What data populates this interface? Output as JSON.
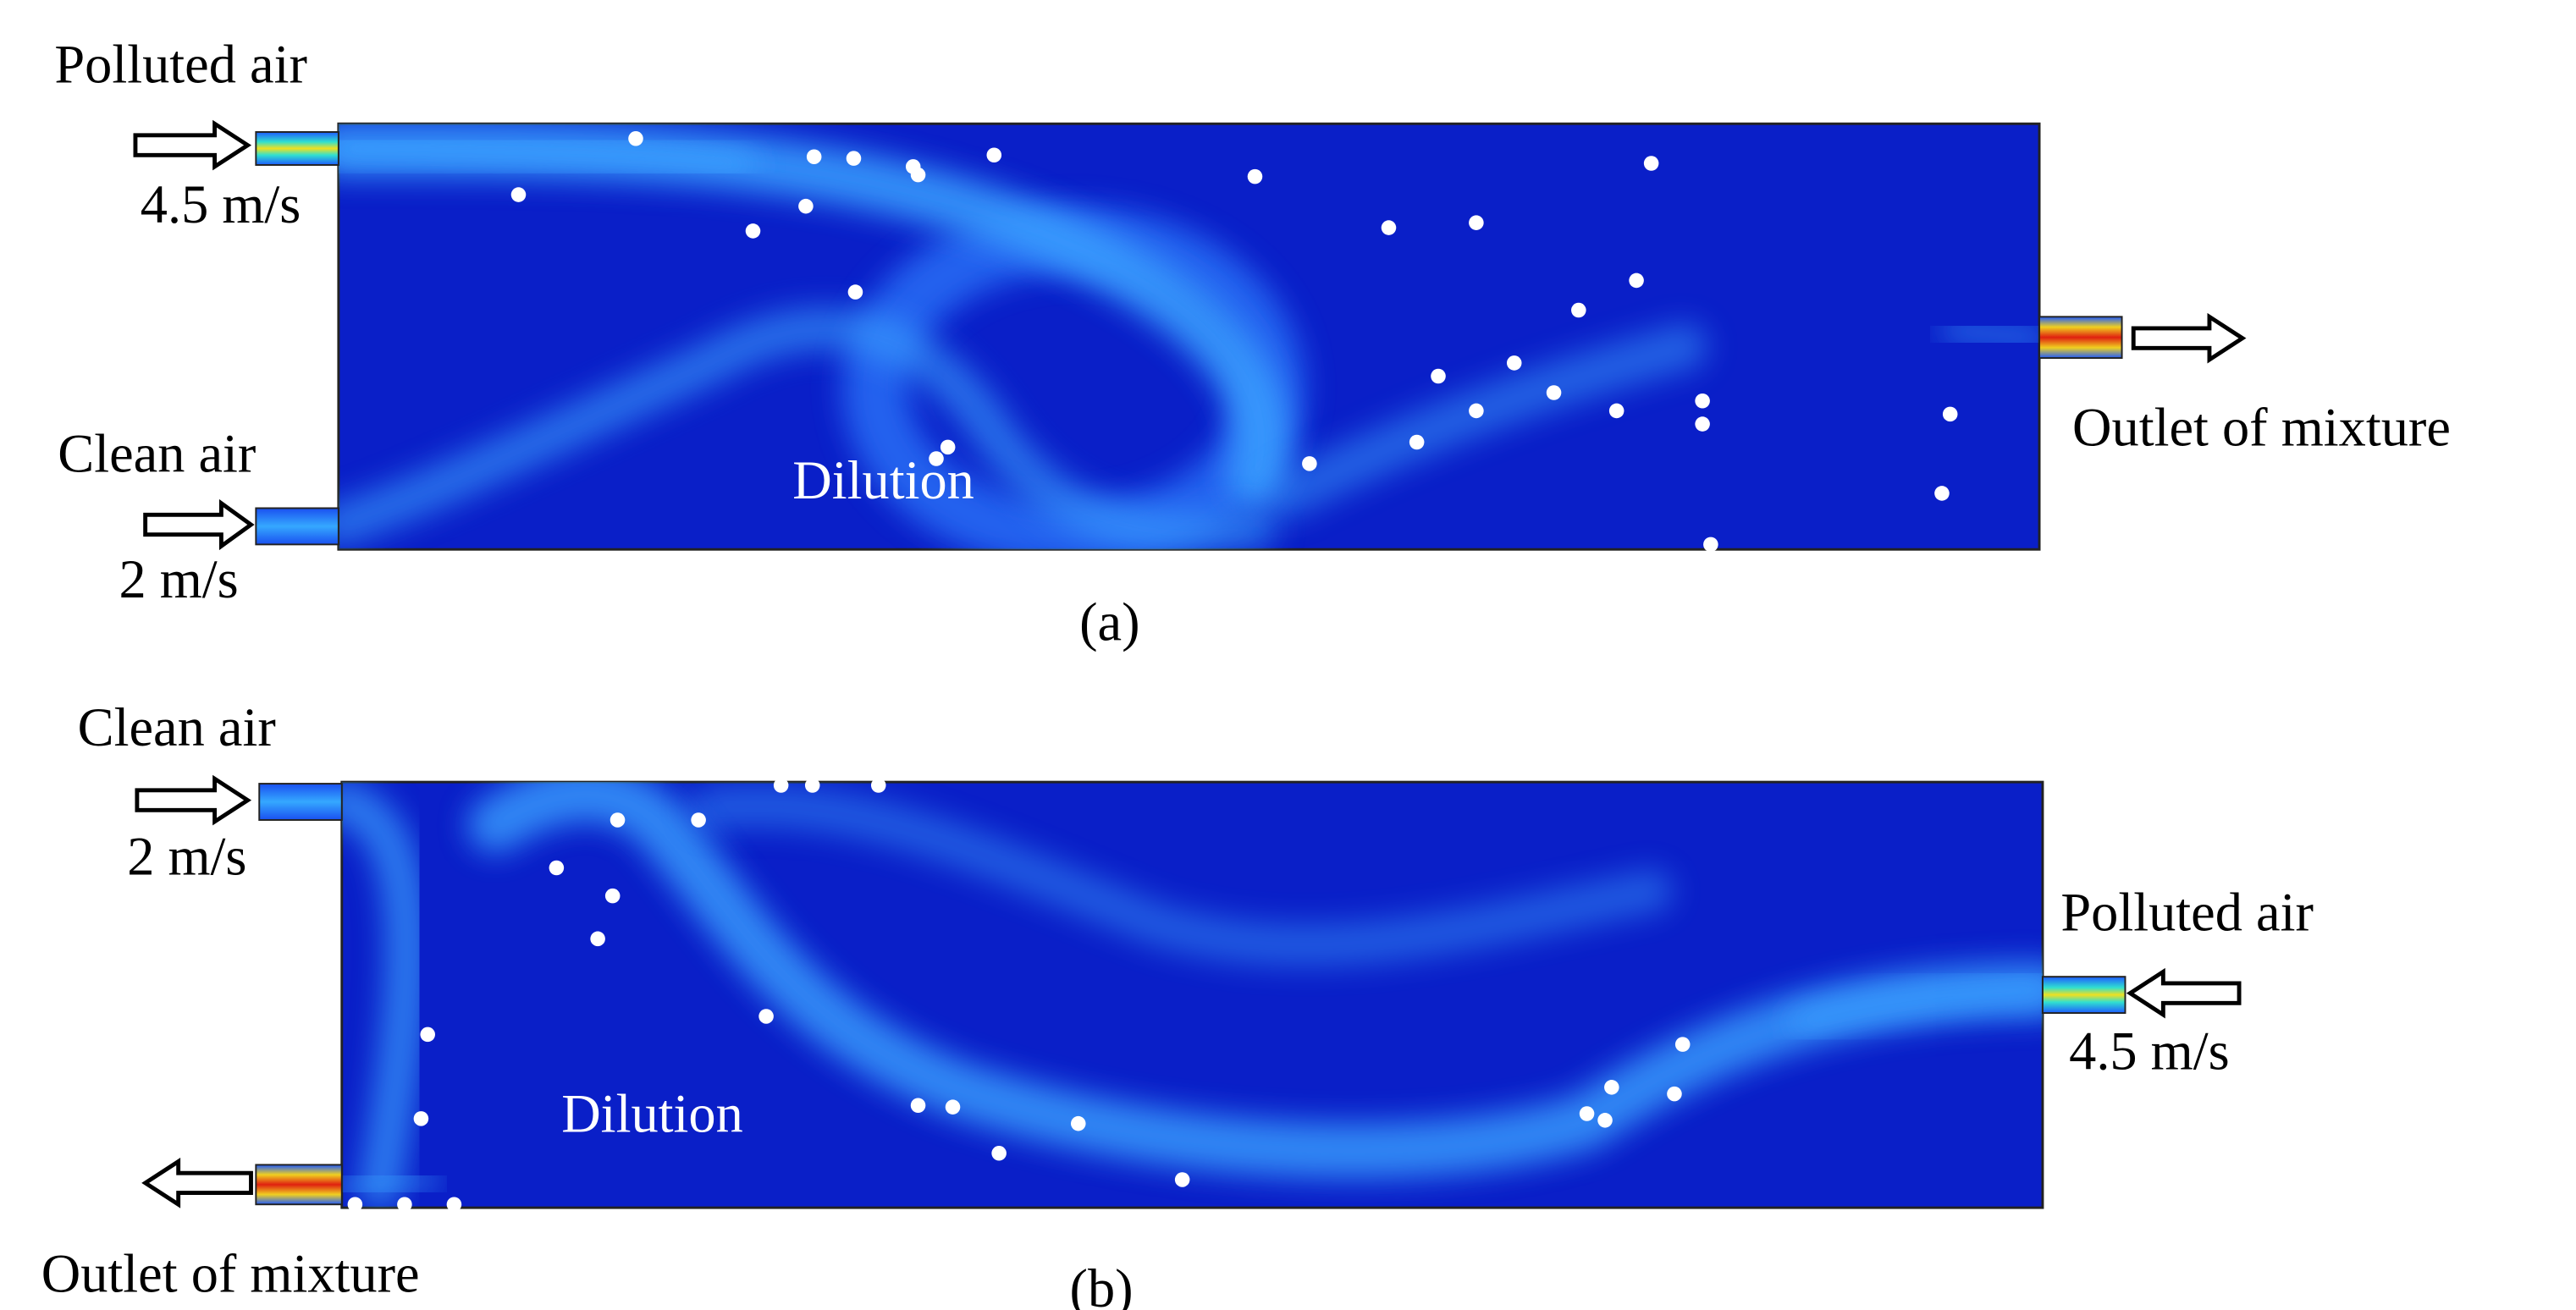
{
  "panels": [
    {
      "caption": "(a)",
      "region_label": "Dilution",
      "top_inlet_label": "Polluted air",
      "top_inlet_speed": "4.5 m/s",
      "bottom_inlet_label": "Clean air",
      "bottom_inlet_speed": "2 m/s",
      "outlet_label": "Outlet of mixture"
    },
    {
      "caption": "(b)",
      "region_label": "Dilution",
      "top_inlet_label": "Clean air",
      "top_inlet_speed": "2 m/s",
      "side_inlet_label": "Polluted air",
      "side_inlet_speed": "4.5 m/s",
      "outlet_label": "Outlet of mixture"
    }
  ]
}
